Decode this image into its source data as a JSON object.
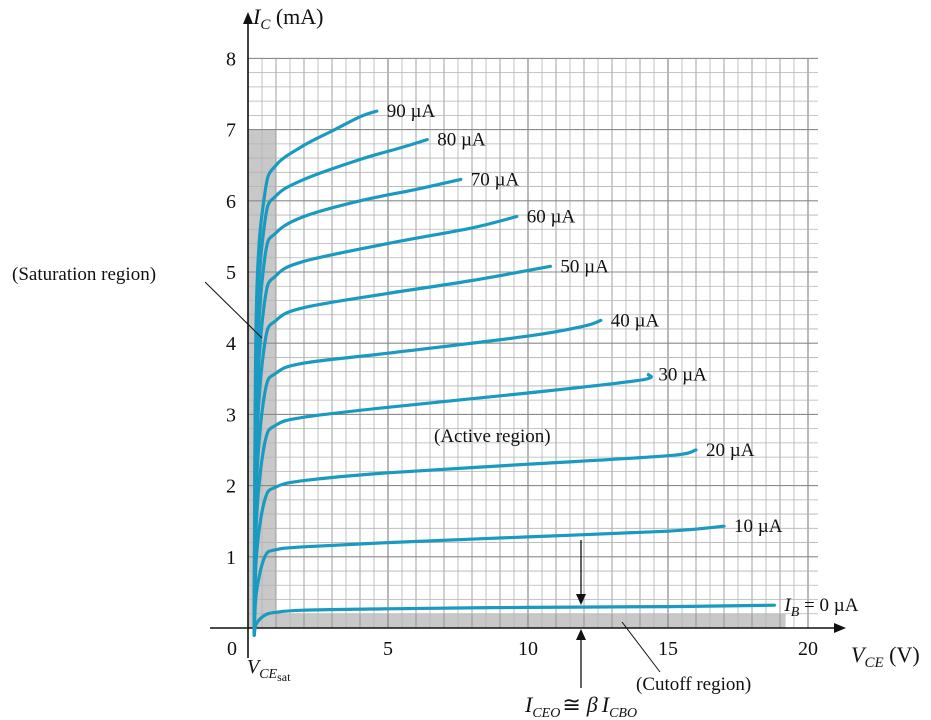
{
  "chart_data": {
    "type": "line",
    "title": "",
    "ylabel": {
      "main": "I",
      "sub": "C",
      "unit": " (mA)"
    },
    "xlabel": {
      "main": "V",
      "sub": "CE",
      "unit": " (V)"
    },
    "xlim": [
      0,
      20
    ],
    "ylim": [
      0,
      8
    ],
    "xticks": [
      "0",
      "5",
      "10",
      "15",
      "20"
    ],
    "yticks": [
      "1",
      "2",
      "3",
      "4",
      "5",
      "6",
      "7",
      "8"
    ],
    "grid": true,
    "series_color": "#1a9ac0",
    "series": [
      {
        "name": "I_B = 0 µA",
        "label_prefix": "I",
        "label_sub": "B",
        "label_text": " = 0 µA",
        "values": [
          [
            0.3,
            0.06
          ],
          [
            0.6,
            0.18
          ],
          [
            1.0,
            0.22
          ],
          [
            2.0,
            0.25
          ],
          [
            5,
            0.27
          ],
          [
            10,
            0.29
          ],
          [
            15,
            0.3
          ],
          [
            18.8,
            0.32
          ]
        ]
      },
      {
        "name": "10 µA",
        "label_text": "10 µA",
        "values": [
          [
            0.3,
            0.5
          ],
          [
            0.6,
            1.0
          ],
          [
            1.0,
            1.1
          ],
          [
            2.0,
            1.14
          ],
          [
            5,
            1.2
          ],
          [
            10,
            1.28
          ],
          [
            15,
            1.36
          ],
          [
            17,
            1.43
          ]
        ]
      },
      {
        "name": "20 µA",
        "label_text": "20 µA",
        "values": [
          [
            0.3,
            1.0
          ],
          [
            0.6,
            1.8
          ],
          [
            1.0,
            1.98
          ],
          [
            2.0,
            2.07
          ],
          [
            5,
            2.18
          ],
          [
            10,
            2.3
          ],
          [
            15,
            2.42
          ],
          [
            16,
            2.5
          ]
        ]
      },
      {
        "name": "30 µA",
        "label_text": "30 µA",
        "values": [
          [
            0.3,
            1.5
          ],
          [
            0.6,
            2.6
          ],
          [
            1.0,
            2.85
          ],
          [
            2.0,
            2.96
          ],
          [
            5,
            3.1
          ],
          [
            10,
            3.3
          ],
          [
            14,
            3.48
          ],
          [
            14.3,
            3.56
          ]
        ]
      },
      {
        "name": "40 µA",
        "label_text": "40 µA",
        "values": [
          [
            0.3,
            2.0
          ],
          [
            0.6,
            3.3
          ],
          [
            1.0,
            3.58
          ],
          [
            2.0,
            3.72
          ],
          [
            5,
            3.86
          ],
          [
            10,
            4.1
          ],
          [
            12,
            4.24
          ],
          [
            12.6,
            4.32
          ]
        ]
      },
      {
        "name": "50 µA",
        "label_text": "50 µA",
        "values": [
          [
            0.3,
            2.5
          ],
          [
            0.6,
            4.0
          ],
          [
            1.0,
            4.32
          ],
          [
            2.0,
            4.5
          ],
          [
            5,
            4.7
          ],
          [
            8,
            4.88
          ],
          [
            10.8,
            5.08
          ]
        ]
      },
      {
        "name": "60 µA",
        "label_text": "60 µA",
        "values": [
          [
            0.3,
            3.0
          ],
          [
            0.6,
            4.6
          ],
          [
            1.0,
            4.95
          ],
          [
            2.0,
            5.15
          ],
          [
            5,
            5.4
          ],
          [
            8,
            5.62
          ],
          [
            9.6,
            5.78
          ]
        ]
      },
      {
        "name": "70 µA",
        "label_text": "70 µA",
        "values": [
          [
            0.3,
            3.5
          ],
          [
            0.6,
            5.2
          ],
          [
            1.0,
            5.55
          ],
          [
            2.0,
            5.78
          ],
          [
            4,
            6.0
          ],
          [
            6,
            6.16
          ],
          [
            7.6,
            6.3
          ]
        ]
      },
      {
        "name": "80 µA",
        "label_text": "80 µA",
        "values": [
          [
            0.3,
            4.0
          ],
          [
            0.6,
            5.7
          ],
          [
            1.0,
            6.07
          ],
          [
            2.0,
            6.3
          ],
          [
            4,
            6.58
          ],
          [
            5.5,
            6.75
          ],
          [
            6.4,
            6.86
          ]
        ]
      },
      {
        "name": "90 µA",
        "label_text": "90 µA",
        "values": [
          [
            0.3,
            4.5
          ],
          [
            0.6,
            6.1
          ],
          [
            1.0,
            6.5
          ],
          [
            2.0,
            6.78
          ],
          [
            3,
            6.98
          ],
          [
            4,
            7.18
          ],
          [
            4.6,
            7.26
          ]
        ]
      }
    ],
    "saturation_region": {
      "x_max": 1.0,
      "y_max": 7.0,
      "color": "#c8c8c8"
    },
    "cutoff_region": {
      "x_max": 19.2,
      "y_max": 0.2,
      "color": "#c8c8c8"
    },
    "annotations": {
      "saturation": "(Saturation region)",
      "active": "(Active region)",
      "cutoff": "(Cutoff region)",
      "vcesat": {
        "main": "V",
        "sub": "CE",
        "subsub": "sat"
      },
      "iceo": {
        "lhs_main": "I",
        "lhs_sub": "CEO",
        "approx": "≅",
        "beta": "β",
        "rhs_main": "I",
        "rhs_sub": "CBO"
      }
    }
  }
}
